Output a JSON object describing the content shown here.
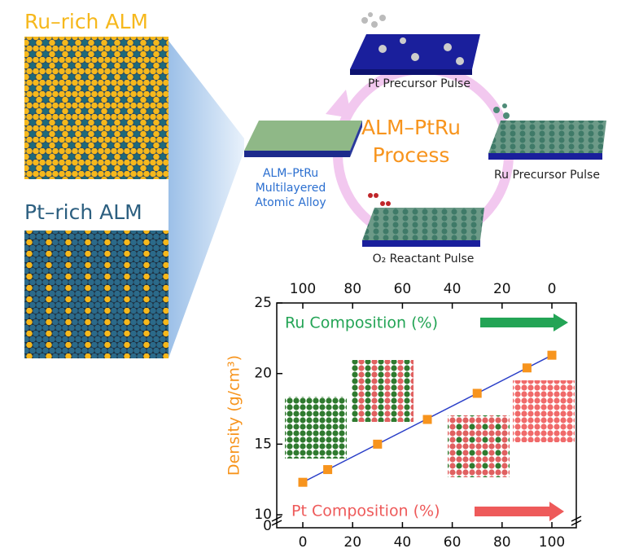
{
  "panels": {
    "ru_rich_title": "Ru–rich ALM",
    "pt_rich_title": "Pt–rich ALM"
  },
  "process": {
    "title_lines": [
      "ALM–PtRu",
      "Process"
    ],
    "steps": [
      "Pt Precursor Pulse",
      "Ru Precursor Pulse",
      "O₂ Reactant Pulse"
    ],
    "product_lines": [
      "ALM–PtRu",
      "Multilayered",
      "Atomic Alloy"
    ]
  },
  "chart_data": {
    "type": "scatter",
    "x": [
      0,
      10,
      30,
      50,
      70,
      90,
      100
    ],
    "values": [
      12.3,
      13.2,
      15.0,
      16.75,
      18.6,
      20.4,
      21.3
    ],
    "color": "#f7941d",
    "trend_line": true,
    "trend_line_color": "#2a3fc8",
    "ylabel": "Density (g/cm³)",
    "ylabel_color": "#f7941d",
    "xlabel": "Pt Composition (%)",
    "xlabel_color": "#ee5a5a",
    "x2label": "Ru Composition (%)",
    "x2label_color": "#23a455",
    "xlim": [
      -10.46,
      109.8
    ],
    "xticks": [
      0,
      20,
      40,
      60,
      80,
      100
    ],
    "x2lim": [
      110.46,
      -9.8
    ],
    "x2ticks": [
      100,
      80,
      60,
      40,
      20,
      0
    ],
    "ylim": [
      9.08,
      25
    ],
    "yticks": [
      10,
      15,
      20,
      25
    ],
    "y_break_label": "0"
  }
}
